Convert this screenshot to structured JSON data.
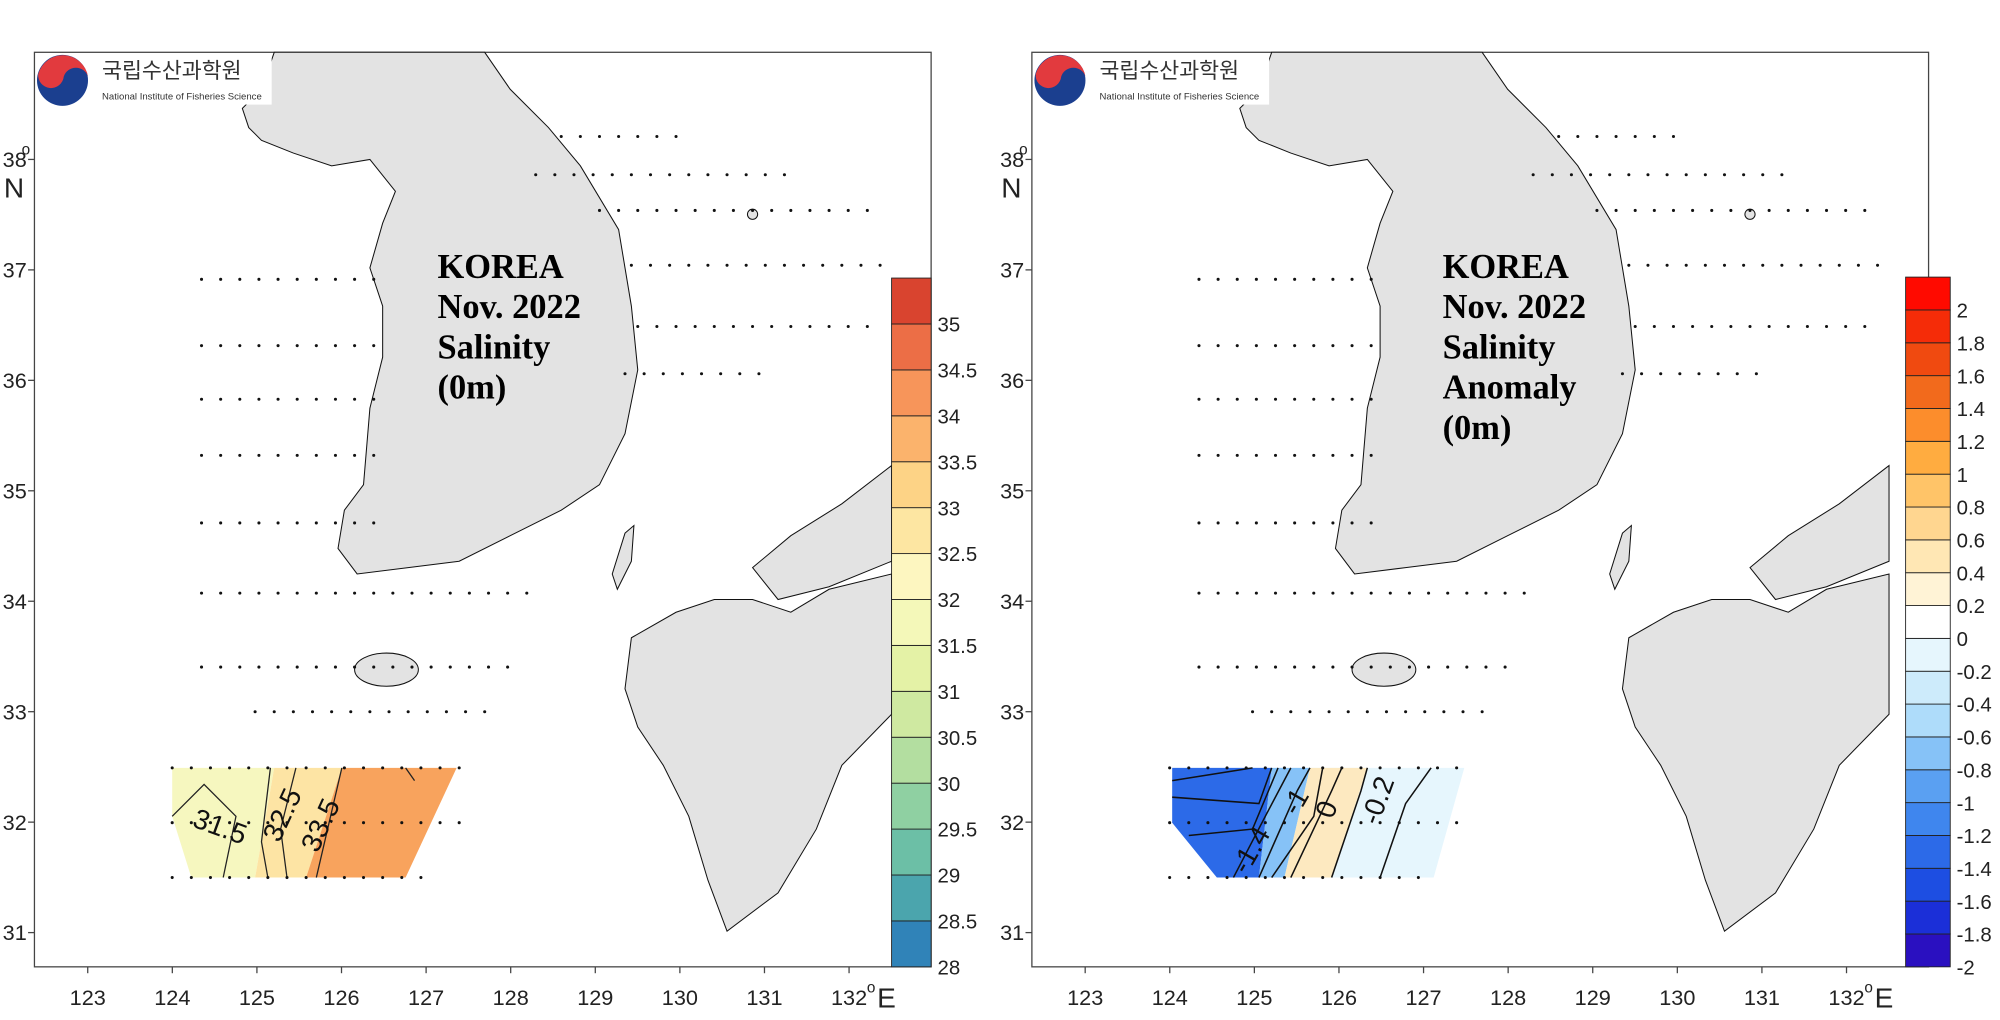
{
  "panels": [
    {
      "logo": {
        "korean": "국립수산과학원",
        "english": "National Institute of Fisheries Science"
      },
      "title_lines": [
        "KOREA",
        "Nov. 2022",
        "Salinity",
        "(0m)"
      ],
      "lon_range": [
        122.37,
        132.97
      ],
      "lat_range": [
        30.69,
        38.97
      ],
      "lon_ticks": [
        123,
        124,
        125,
        126,
        127,
        128,
        129,
        130,
        131,
        132
      ],
      "lat_ticks": [
        31,
        32,
        33,
        34,
        35,
        36,
        37,
        38
      ],
      "degree": "o",
      "lon_unit": "E",
      "lat_unit": "N",
      "colorbar": {
        "values": [
          28,
          28.5,
          29,
          29.5,
          30,
          30.5,
          31,
          31.5,
          32,
          32.5,
          33,
          33.5,
          34,
          34.5,
          35
        ],
        "colors": [
          "#3083b8",
          "#4ba5ad",
          "#6cbfa6",
          "#8fd0a2",
          "#b3dea0",
          "#cfe9a1",
          "#e4f2a6",
          "#f4f8b9",
          "#fdf6c0",
          "#fde6a2",
          "#fdd386",
          "#fbb36c",
          "#f7955a",
          "#ec6e46",
          "#d9442f"
        ]
      },
      "contour_labels": [
        "31.5",
        "32.5",
        "33.5"
      ]
    },
    {
      "logo": {
        "korean": "국립수산과학원",
        "english": "National Institute of Fisheries Science"
      },
      "title_lines": [
        "KOREA",
        "Nov. 2022",
        "Salinity",
        "Anomaly",
        "(0m)"
      ],
      "lon_range": [
        122.37,
        132.97
      ],
      "lat_range": [
        30.69,
        38.97
      ],
      "lon_ticks": [
        123,
        124,
        125,
        126,
        127,
        128,
        129,
        130,
        131,
        132
      ],
      "lat_ticks": [
        31,
        32,
        33,
        34,
        35,
        36,
        37,
        38
      ],
      "degree": "o",
      "lon_unit": "E",
      "lat_unit": "N",
      "colorbar": {
        "values": [
          -2,
          -1.8,
          -1.6,
          -1.4,
          -1.2,
          -1,
          -0.8,
          -0.6,
          -0.4,
          -0.2,
          0,
          0.2,
          0.4,
          0.6,
          0.8,
          1,
          1.2,
          1.4,
          1.6,
          1.8,
          2
        ],
        "colors": [
          "#2a10c0",
          "#1b2fd8",
          "#1d4ee2",
          "#2c6ae8",
          "#3f86ee",
          "#5aa0f2",
          "#86c2f7",
          "#aedcfa",
          "#cdebfb",
          "#e6f6fd",
          "#ffffff",
          "#fff3d6",
          "#ffe7b4",
          "#ffd690",
          "#ffc468",
          "#ffac40",
          "#fc8d2c",
          "#f26a1c",
          "#f04a10",
          "#f52c08",
          "#ff0a00"
        ]
      },
      "contour_labels": [
        "-1",
        "-1.4",
        "0",
        "-0.2"
      ]
    }
  ]
}
